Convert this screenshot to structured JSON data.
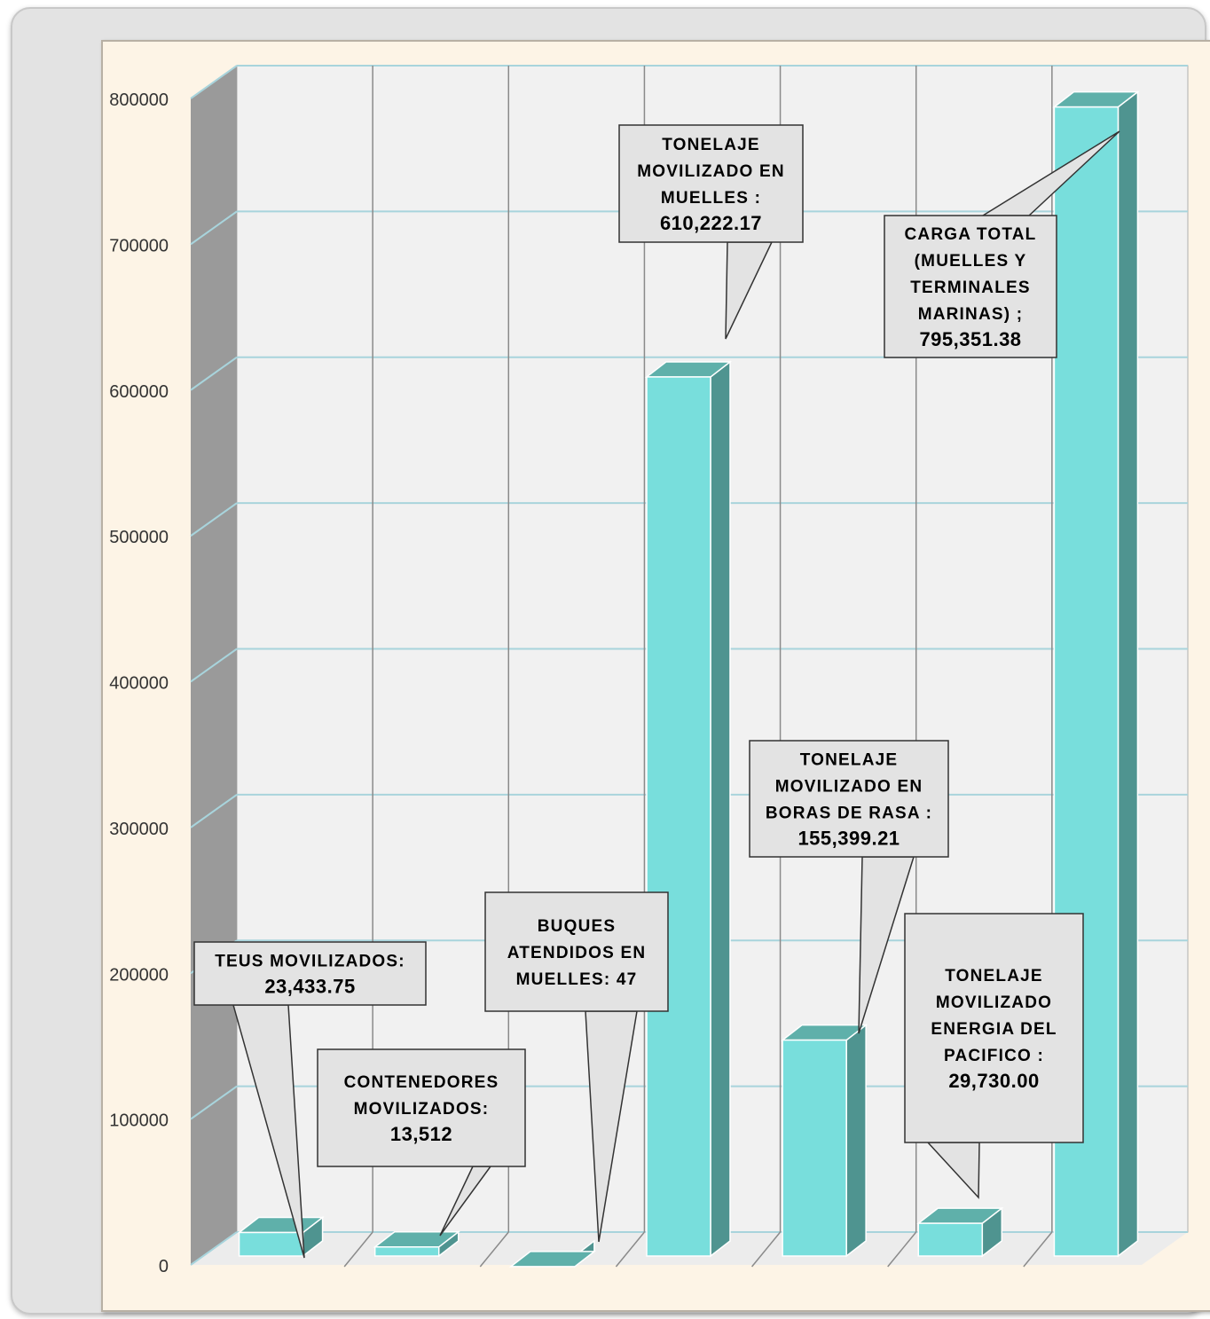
{
  "chart_data": {
    "type": "bar",
    "title": "",
    "xlabel": "",
    "ylabel": "",
    "ylim": [
      0,
      800000
    ],
    "y_ticks": [
      "0",
      "100000",
      "200000",
      "300000",
      "400000",
      "500000",
      "600000",
      "700000",
      "800000"
    ],
    "grid": true,
    "style": "3d-columns",
    "colors": {
      "bar_front": "#78dedc",
      "bar_side": "#4f9490",
      "bar_top": "#5fb0aa",
      "gridline": "#a8d4dc",
      "callout_fill": "#e3e3e3",
      "panel": "#fdf4e6"
    },
    "values": [
      23433.75,
      13512,
      47,
      610222.17,
      155399.21,
      29730.0,
      795351.38
    ],
    "callouts": [
      {
        "lines": [
          "TEUS MOVILIZADOS:",
          "23,433.75"
        ]
      },
      {
        "lines": [
          "CONTENEDORES",
          "MOVILIZADOS:",
          "13,512"
        ]
      },
      {
        "lines": [
          "BUQUES",
          "ATENDIDOS EN",
          "MUELLES: 47"
        ]
      },
      {
        "lines": [
          "TONELAJE",
          "MOVILIZADO EN",
          "MUELLES :",
          "610,222.17"
        ]
      },
      {
        "lines": [
          "TONELAJE",
          "MOVILIZADO EN",
          "BORAS DE RASA :",
          "155,399.21"
        ]
      },
      {
        "lines": [
          "TONELAJE",
          "MOVILIZADO",
          "ENERGIA DEL",
          "PACIFICO :",
          "29,730.00"
        ]
      },
      {
        "lines": [
          "CARGA TOTAL",
          "(MUELLES Y",
          "TERMINALES",
          "MARINAS) ;",
          "795,351.38"
        ]
      }
    ]
  }
}
